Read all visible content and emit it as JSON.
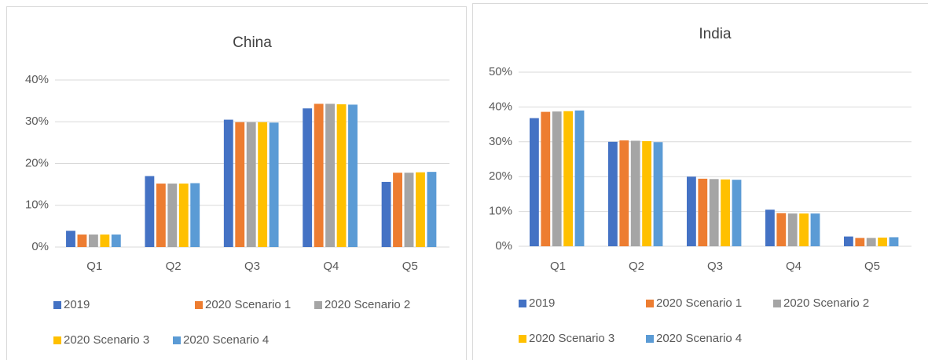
{
  "chart_data": [
    {
      "type": "bar",
      "title": "China",
      "categories": [
        "Q1",
        "Q2",
        "Q3",
        "Q4",
        "Q5"
      ],
      "series": [
        {
          "name": "2019",
          "color": "#4472c4",
          "values": [
            3.9,
            17,
            30.5,
            33.2,
            15.6
          ]
        },
        {
          "name": "2020 Scenario 1",
          "color": "#ed7d31",
          "values": [
            3.0,
            15.2,
            29.9,
            34.3,
            17.8
          ]
        },
        {
          "name": "2020 Scenario 2",
          "color": "#a5a5a5",
          "values": [
            3.0,
            15.2,
            29.9,
            34.3,
            17.8
          ]
        },
        {
          "name": "2020 Scenario 3",
          "color": "#ffc000",
          "values": [
            3.0,
            15.2,
            29.9,
            34.2,
            17.9
          ]
        },
        {
          "name": "2020 Scenario 4",
          "color": "#5b9bd5",
          "values": [
            3.0,
            15.3,
            29.8,
            34.1,
            18.0
          ]
        }
      ],
      "ylim": [
        0,
        40
      ],
      "yticks": [
        {
          "value": 0,
          "label": "0%"
        },
        {
          "value": 10,
          "label": "10%"
        },
        {
          "value": 20,
          "label": "20%"
        },
        {
          "value": 30,
          "label": "30%"
        },
        {
          "value": 40,
          "label": "40%"
        }
      ],
      "grid": true,
      "legend": "bottom"
    },
    {
      "type": "bar",
      "title": "India",
      "categories": [
        "Q1",
        "Q2",
        "Q3",
        "Q4",
        "Q5"
      ],
      "series": [
        {
          "name": "2019",
          "color": "#4472c4",
          "values": [
            36.8,
            30.0,
            20.0,
            10.5,
            2.8
          ]
        },
        {
          "name": "2020 Scenario 1",
          "color": "#ed7d31",
          "values": [
            38.6,
            30.4,
            19.4,
            9.5,
            2.4
          ]
        },
        {
          "name": "2020 Scenario 2",
          "color": "#a5a5a5",
          "values": [
            38.7,
            30.3,
            19.3,
            9.4,
            2.4
          ]
        },
        {
          "name": "2020 Scenario 3",
          "color": "#ffc000",
          "values": [
            38.8,
            30.2,
            19.2,
            9.4,
            2.5
          ]
        },
        {
          "name": "2020 Scenario 4",
          "color": "#5b9bd5",
          "values": [
            39.0,
            29.9,
            19.1,
            9.4,
            2.6
          ]
        }
      ],
      "ylim": [
        0,
        50
      ],
      "yticks": [
        {
          "value": 0,
          "label": "0%"
        },
        {
          "value": 10,
          "label": "10%"
        },
        {
          "value": 20,
          "label": "20%"
        },
        {
          "value": 30,
          "label": "30%"
        },
        {
          "value": 40,
          "label": "40%"
        },
        {
          "value": 50,
          "label": "50%"
        }
      ],
      "grid": true,
      "legend": "bottom"
    }
  ]
}
